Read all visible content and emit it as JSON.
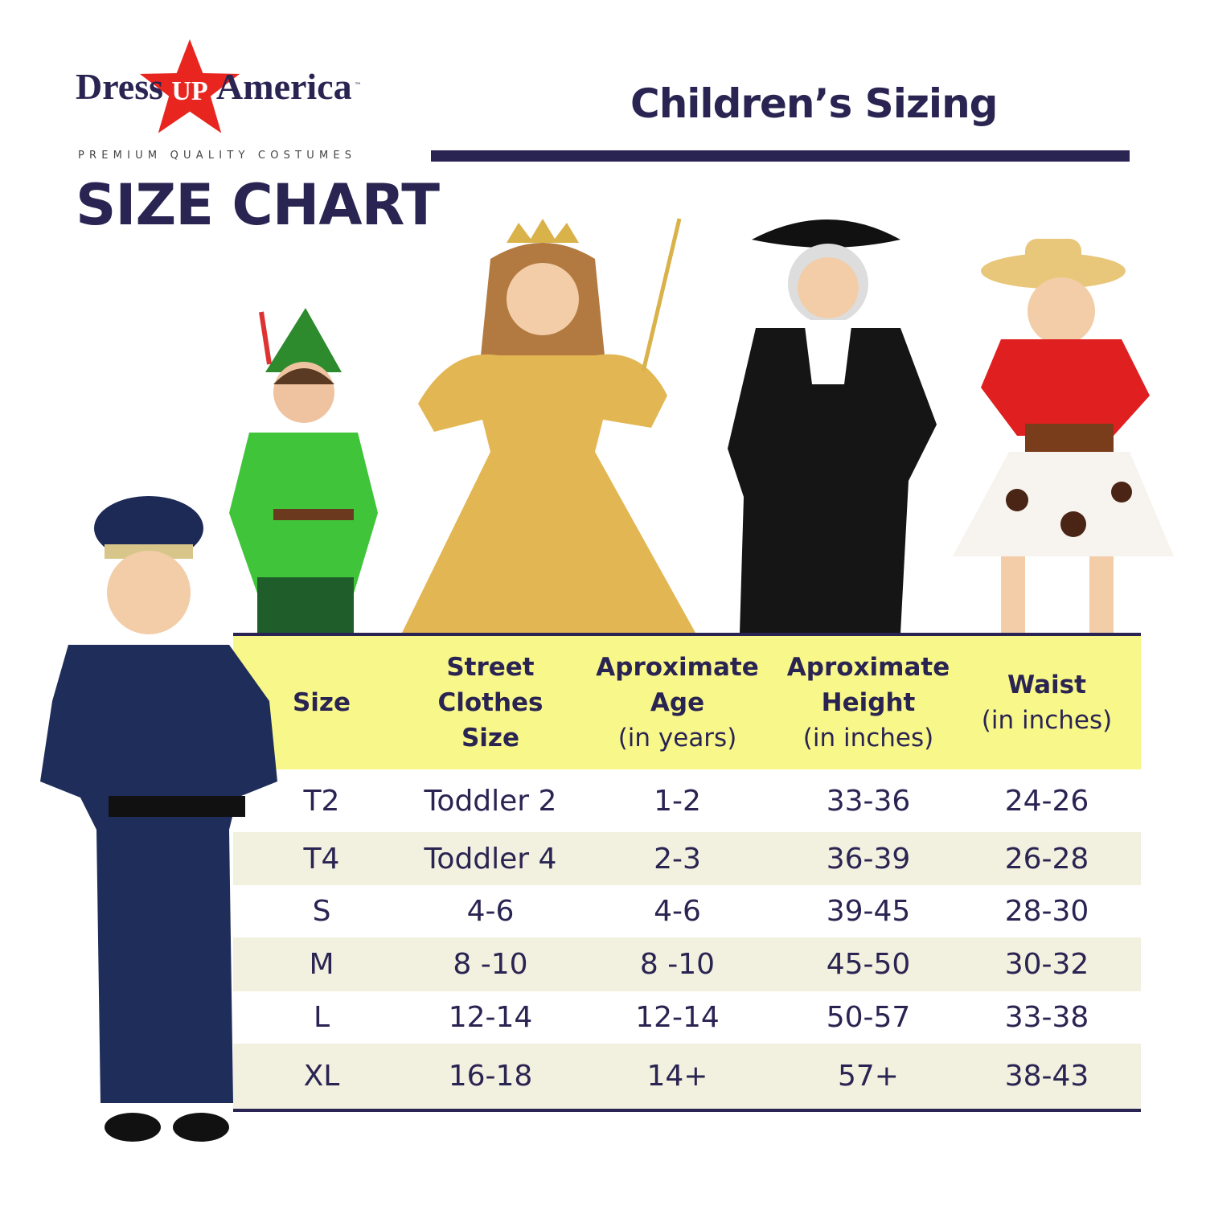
{
  "logo": {
    "part1": "Dress",
    "star_text": "UP",
    "part2": "America",
    "tm": "™",
    "tagline": "PREMIUM QUALITY COSTUMES"
  },
  "heading": "SIZE CHART",
  "title": "Children’s Sizing",
  "colors": {
    "navy": "#2a2452",
    "header_yellow": "#f8f78a",
    "alt_row": "#f2f0df",
    "star_red": "#e8261f"
  },
  "table": {
    "headers": [
      {
        "bold": "Size",
        "sub": ""
      },
      {
        "bold": "Street\nClothes\nSize",
        "sub": ""
      },
      {
        "bold": "Aproximate\nAge",
        "sub": "(in years)"
      },
      {
        "bold": "Aproximate\nHeight",
        "sub": "(in inches)"
      },
      {
        "bold": "Waist",
        "sub": "(in inches)"
      }
    ],
    "rows": [
      [
        "T2",
        "Toddler 2",
        "1-2",
        "33-36",
        "24-26"
      ],
      [
        "T4",
        "Toddler 4",
        "2-3",
        "36-39",
        "26-28"
      ],
      [
        "S",
        "4-6",
        "4-6",
        "39-45",
        "28-30"
      ],
      [
        "M",
        "8 -10",
        "8 -10",
        "45-50",
        "30-32"
      ],
      [
        "L",
        "12-14",
        "12-14",
        "50-57",
        "33-38"
      ],
      [
        "XL",
        "16-18",
        "14+",
        "57+",
        "38-43"
      ]
    ]
  },
  "photos": [
    "police-officer-costume",
    "peter-pan-costume",
    "princess-costume",
    "colonial-costume",
    "cowgirl-costume"
  ]
}
